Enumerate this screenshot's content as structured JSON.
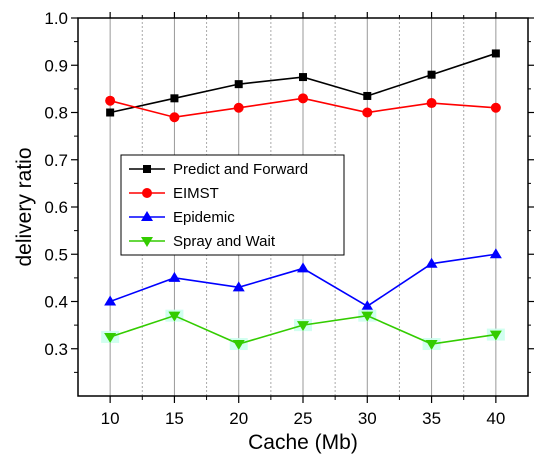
{
  "chart_data": {
    "type": "line",
    "xlabel": "Cache (Mb)",
    "ylabel": "delivery ratio",
    "x": [
      10,
      15,
      20,
      25,
      30,
      35,
      40
    ],
    "xlim": [
      7.5,
      42.5
    ],
    "ylim": [
      0.2,
      1.0
    ],
    "x_tick_labels": [
      "10",
      "15",
      "20",
      "25",
      "30",
      "35",
      "40"
    ],
    "y_tick_labels": [
      "0.3",
      "0.4",
      "0.5",
      "0.6",
      "0.7",
      "0.8",
      "0.9",
      "1.0"
    ],
    "grid": "vertical",
    "legend_position": "center-left",
    "series": [
      {
        "name": "Predict and Forward",
        "color": "#000000",
        "marker": "square",
        "values": [
          0.8,
          0.83,
          0.86,
          0.875,
          0.835,
          0.88,
          0.925
        ]
      },
      {
        "name": "EIMST",
        "color": "#ff0000",
        "marker": "circle",
        "values": [
          0.825,
          0.79,
          0.81,
          0.83,
          0.8,
          0.82,
          0.81
        ]
      },
      {
        "name": "Epidemic",
        "color": "#0000ff",
        "marker": "triangle-up",
        "values": [
          0.4,
          0.45,
          0.43,
          0.47,
          0.39,
          0.48,
          0.5
        ]
      },
      {
        "name": "Spray and Wait",
        "color": "#33cc00",
        "marker": "triangle-down",
        "values": [
          0.325,
          0.37,
          0.31,
          0.35,
          0.37,
          0.31,
          0.33
        ]
      }
    ]
  }
}
